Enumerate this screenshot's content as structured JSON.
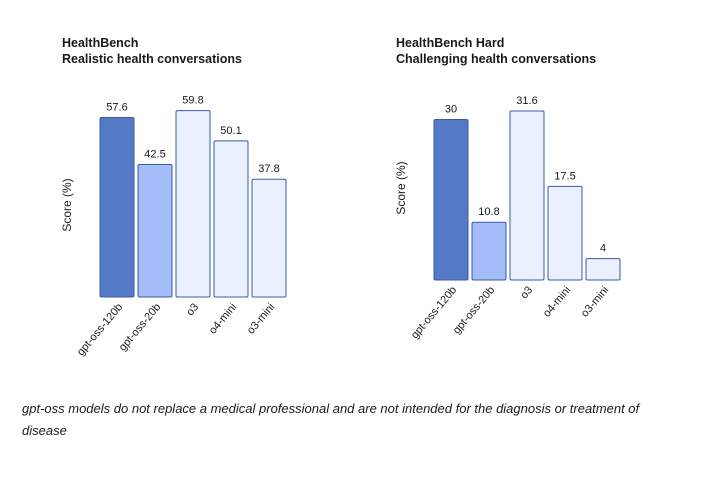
{
  "chart_data": [
    {
      "type": "bar",
      "title": "HealthBench",
      "subtitle": "Realistic health conversations",
      "ylabel": "Score (%)",
      "categories": [
        "gpt-oss-120b",
        "gpt-oss-20b",
        "o3",
        "o4-mini",
        "o3-mini"
      ],
      "values": [
        57.6,
        42.5,
        59.8,
        50.1,
        37.8
      ],
      "colors": [
        "#5479c5",
        "#a4bcf7",
        "#eaf0fe",
        "#eaf0fe",
        "#eaf0fe"
      ],
      "ylim": [
        0,
        60
      ],
      "grid": false,
      "legend": "none"
    },
    {
      "type": "bar",
      "title": "HealthBench Hard",
      "subtitle": "Challenging health conversations",
      "ylabel": "Score (%)",
      "categories": [
        "gpt-oss-120b",
        "gpt-oss-20b",
        "o3",
        "o4-mini",
        "o3-mini"
      ],
      "values": [
        30,
        10.8,
        31.6,
        17.5,
        4
      ],
      "colors": [
        "#5479c5",
        "#a4bcf7",
        "#eaf0fe",
        "#eaf0fe",
        "#eaf0fe"
      ],
      "ylim": [
        0,
        31.6
      ],
      "grid": false,
      "legend": "none"
    }
  ],
  "disclaimer": "gpt-oss models do not replace a medical professional and are not intended for the diagnosis or treatment of disease"
}
